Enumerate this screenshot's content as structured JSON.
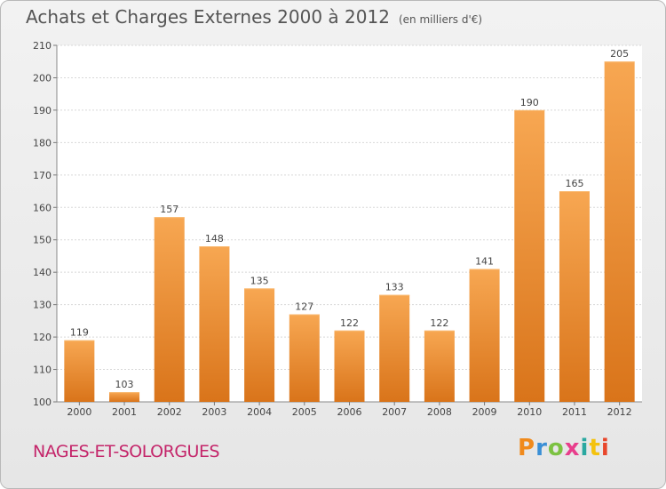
{
  "header": {
    "title": "Achats et Charges Externes 2000 à 2012",
    "subtitle": "(en milliers d'€)"
  },
  "footer": {
    "town": "NAGES-ET-SOLORGUES",
    "logo": "Proxiti",
    "logo_colors": [
      "#f08a1c",
      "#3a8fd6",
      "#7cc242",
      "#e83e8c",
      "#2aa8a0",
      "#f4c20d",
      "#e8462b"
    ]
  },
  "chart_data": {
    "type": "bar",
    "categories": [
      "2000",
      "2001",
      "2002",
      "2003",
      "2004",
      "2005",
      "2006",
      "2007",
      "2008",
      "2009",
      "2010",
      "2011",
      "2012"
    ],
    "values": [
      119,
      103,
      157,
      148,
      135,
      127,
      122,
      133,
      122,
      141,
      190,
      165,
      205
    ],
    "ylim": [
      100,
      210
    ],
    "yticks": [
      100,
      110,
      120,
      130,
      140,
      150,
      160,
      170,
      180,
      190,
      200,
      210
    ],
    "grid": true,
    "bar_color": "#f0962e"
  }
}
